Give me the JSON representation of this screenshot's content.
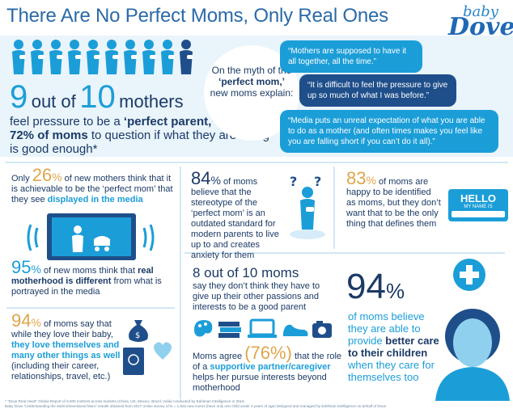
{
  "header": {
    "title": "There Are No Perfect Moms, Only Real Ones",
    "brand_baby": "baby",
    "brand_dove": "Dove"
  },
  "colors": {
    "primary_blue": "#1b9ed8",
    "navy": "#1b3a66",
    "dark_bubble": "#1f4f8a",
    "gold_accent": "#e0a54b",
    "band_bg": "#e9f4fb"
  },
  "top": {
    "nine": "9",
    "out_of": "out of",
    "ten": "10",
    "mothers": "mothers",
    "pressure_1": "feel pressure to be a ",
    "pressure_bold": "‘perfect parent,’",
    "pressure_2": " leading ",
    "pressure_pct": "72% of moms",
    "pressure_3": " to question if what they are doing is good enough*",
    "myth_1": "On the myth of the",
    "myth_bold": "‘perfect mom,’",
    "myth_2": "new moms explain:",
    "quotes": [
      "“Mothers are supposed to have it all together, all the time.”",
      "“It is difficult to feel the pressure to give up so much of what I was before.”",
      "“Media puts an unreal expectation of what you are able to do as a mother (and often times makes you feel like you are falling short if you can’t do it all).”"
    ]
  },
  "stats": {
    "s26": {
      "pre": "Only",
      "num": "26",
      "sym": "%",
      "text_1": " of new mothers think that it is achievable to be the ‘perfect mom’ that they see ",
      "bold": "displayed in the media"
    },
    "s84": {
      "num": "84",
      "sym": "%",
      "text": " of moms believe that the stereotype of the ‘perfect mom’ is an outdated standard for modern parents to live up to and creates anxiety for them"
    },
    "s83": {
      "num": "83",
      "sym": "%",
      "text": " of moms are happy to be identified as moms, but they don’t want that to be the only thing that defines them"
    },
    "hello_1": "HELLO",
    "hello_2": "MY NAME IS",
    "s95": {
      "num": "95",
      "sym": "%",
      "text_1": " of new moms think that ",
      "bold": "real motherhood is different",
      "text_2": " from what is portrayed in the media"
    },
    "s8of10": {
      "head": "8 out of 10 moms",
      "text": "say they don’t think they have to give up their other passions and interests to be a good parent"
    },
    "s94a": {
      "num": "94",
      "sym": "%",
      "text_1": " of moms say that while they love their baby, ",
      "bold": "they love themselves and many other things as well",
      "text_2": " (including their career, relationships, travel, etc.)"
    },
    "s76": {
      "pre": "Moms agree ",
      "num": "(76%)",
      "text_1": " that the role of a ",
      "bold": "supportive partner/caregiver",
      "text_2": " helps her pursue interests beyond motherhood"
    },
    "s94b": {
      "num": "94",
      "sym": "%",
      "text_1": "of moms believe they are able to provide ",
      "bold": "better care to their children",
      "text_2": " when they care for themselves too"
    }
  },
  "footer": {
    "line1": "* “Dove Real Heart” Global Report of 6,000 mothers across markets (China, US, Mexico, Brazil, India) conducted by Edelman Intelligence in 2016.",
    "line2": "Baby Dove “Understanding the Multi-Dimensional Mom” results obtained from 2017 online survey of N = 1,922 new moms (have only one child under 3 years of age) designed and managed by Edelman Intelligence on behalf of Dove"
  }
}
